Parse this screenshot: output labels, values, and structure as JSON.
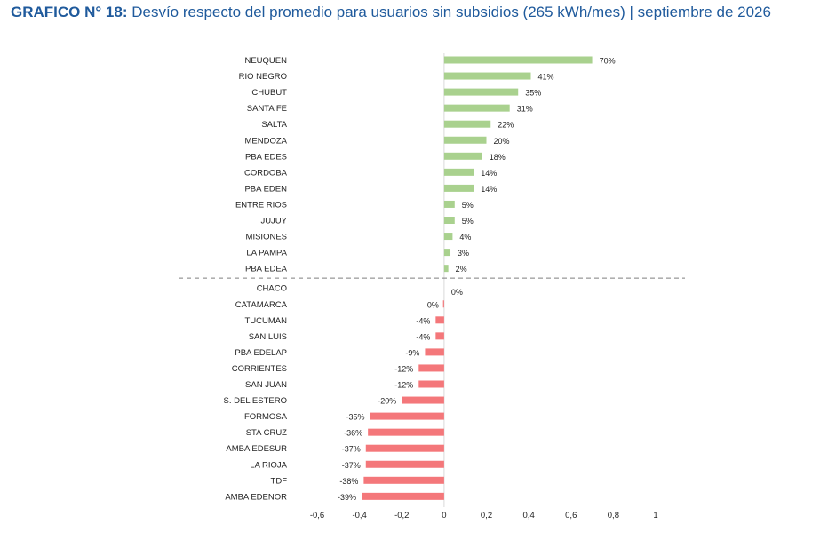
{
  "title": {
    "prefix": "GRAFICO N° 18:",
    "text": "Desvío respecto del promedio para usuarios sin subsidios (265 kWh/mes) | septiembre de 2026"
  },
  "chart_data": {
    "type": "bar",
    "orientation": "horizontal",
    "categories": [
      "NEUQUEN",
      "RIO NEGRO",
      "CHUBUT",
      "SANTA FE",
      "SALTA",
      "MENDOZA",
      "PBA EDES",
      "CORDOBA",
      "PBA EDEN",
      "ENTRE RIOS",
      "JUJUY",
      "MISIONES",
      "LA PAMPA",
      "PBA EDEA",
      "CHACO",
      "CATAMARCA",
      "TUCUMAN",
      "SAN LUIS",
      "PBA EDELAP",
      "CORRIENTES",
      "SAN JUAN",
      "S. DEL ESTERO",
      "FORMOSA",
      "STA CRUZ",
      "AMBA EDESUR",
      "LA RIOJA",
      "TDF",
      "AMBA EDENOR"
    ],
    "values": [
      0.7,
      0.41,
      0.35,
      0.31,
      0.22,
      0.2,
      0.18,
      0.14,
      0.14,
      0.05,
      0.05,
      0.04,
      0.03,
      0.02,
      0.0,
      -0.005,
      -0.04,
      -0.04,
      -0.09,
      -0.12,
      -0.12,
      -0.2,
      -0.35,
      -0.36,
      -0.37,
      -0.37,
      -0.38,
      -0.39
    ],
    "data_labels": [
      "70%",
      "41%",
      "35%",
      "31%",
      "22%",
      "20%",
      "18%",
      "14%",
      "14%",
      "5%",
      "5%",
      "4%",
      "3%",
      "2%",
      "0%",
      "0%",
      "-4%",
      "-4%",
      "-9%",
      "-12%",
      "-12%",
      "-20%",
      "-35%",
      "-36%",
      "-37%",
      "-37%",
      "-38%",
      "-39%"
    ],
    "xlim": [
      -0.6,
      1
    ],
    "x_ticks": [
      "-0,6",
      "-0,4",
      "-0,2",
      "0",
      "0,2",
      "0,4",
      "0,6",
      "0,8",
      "1"
    ],
    "grid": false,
    "legend": "none",
    "colors": {
      "positive": "#a9d18e",
      "negative": "#f4777a",
      "separator": "#7f7f7f",
      "title": "#1f5a9c"
    },
    "separator_after_category": "PBA EDEA"
  }
}
